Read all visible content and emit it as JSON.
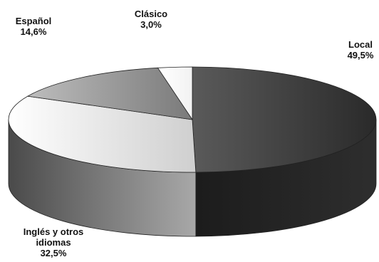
{
  "chart_data": {
    "type": "pie",
    "style": "3d",
    "title": "",
    "slices": [
      {
        "name": "Local",
        "value_label": "49,5%",
        "value": 49.5,
        "color": "#3a3a3a"
      },
      {
        "name": "Inglés y otros idiomas",
        "name_lines": [
          "Inglés y otros",
          "idiomas"
        ],
        "value_label": "32,5%",
        "value": 32.5,
        "color": "#e8e8e8"
      },
      {
        "name": "Español",
        "value_label": "14,6%",
        "value": 14.6,
        "color": "#8c8c8c"
      },
      {
        "name": "Clásico",
        "value_label": "3,0%",
        "value": 3.0,
        "color": "#ffffff"
      }
    ]
  }
}
